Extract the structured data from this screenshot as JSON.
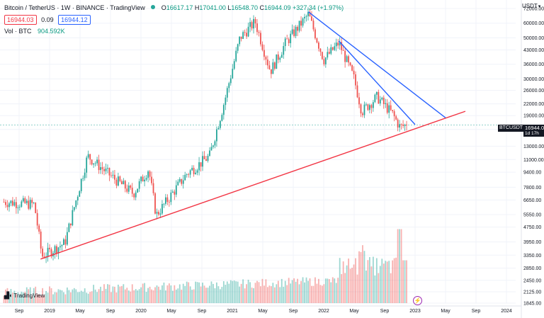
{
  "header": {
    "title": "Bitcoin / TetherUS · 1W · BINANCE · TradingView",
    "open_label": "O",
    "open": "16617.17",
    "high_label": "H",
    "high": "17041.00",
    "low_label": "L",
    "low": "16548.70",
    "close_label": "C",
    "close": "16944.09",
    "change": "+327.34 (+1.97%)",
    "sell_price": "16944.03",
    "spread": "0.09",
    "buy_price": "16944.12",
    "volume_label": "Vol · BTC",
    "volume_value": "904.592K"
  },
  "price_axis": {
    "currency": "USDT",
    "current_symbol": "BTCUSDT",
    "current_price": "16944.09",
    "countdown": "1d 17h"
  },
  "branding": {
    "logo_text": "TradingView",
    "logo_icon": "tradingview-logo-icon"
  },
  "colors": {
    "up": "#26a69a",
    "down": "#ef5350",
    "trend_support": "#f23645",
    "trend_resistance": "#2962ff"
  },
  "chart_data": {
    "type": "candlestick",
    "title": "Bitcoin / TetherUS · 1W · BINANCE",
    "scale": "log",
    "ylim": [
      1845,
      72000
    ],
    "y_ticks": [
      "72000.00",
      "60000.00",
      "50000.00",
      "43000.00",
      "36000.00",
      "30000.00",
      "26000.00",
      "22000.00",
      "19000.00",
      "16000.00",
      "13000.00",
      "11000.00",
      "9400.00",
      "7800.00",
      "6650.00",
      "5550.00",
      "4750.00",
      "3950.00",
      "3350.00",
      "2850.00",
      "2450.00",
      "2125.00",
      "1845.00"
    ],
    "x_ticks": [
      "Sep",
      "2019",
      "May",
      "Sep",
      "2020",
      "May",
      "Sep",
      "2021",
      "May",
      "Sep",
      "2022",
      "May",
      "Sep",
      "2023",
      "May",
      "Sep",
      "2024"
    ],
    "grid": true,
    "legend": "top-left",
    "price_anchors": [
      [
        "2018-07",
        6500
      ],
      [
        "2018-11",
        6300
      ],
      [
        "2018-12",
        3300
      ],
      [
        "2019-03",
        3900
      ],
      [
        "2019-06",
        11500
      ],
      [
        "2019-09",
        9000
      ],
      [
        "2019-12",
        7200
      ],
      [
        "2020-02",
        9800
      ],
      [
        "2020-03",
        5500
      ],
      [
        "2020-07",
        9200
      ],
      [
        "2020-10",
        11500
      ],
      [
        "2020-12",
        23000
      ],
      [
        "2021-02",
        50000
      ],
      [
        "2021-04",
        61000
      ],
      [
        "2021-06",
        33000
      ],
      [
        "2021-08",
        47000
      ],
      [
        "2021-11",
        67000
      ],
      [
        "2022-01",
        38000
      ],
      [
        "2022-03",
        47000
      ],
      [
        "2022-05",
        30000
      ],
      [
        "2022-06",
        20000
      ],
      [
        "2022-08",
        24000
      ],
      [
        "2022-10",
        19500
      ],
      [
        "2022-11",
        16500
      ],
      [
        "2022-12",
        16944
      ]
    ],
    "volume_peaks": [
      [
        "2022-06",
        "high"
      ],
      [
        "2022-11",
        "highest"
      ]
    ],
    "trendlines": [
      {
        "name": "support",
        "from": [
          "2018-12",
          3200
        ],
        "to": [
          "2023-09",
          21000
        ],
        "color": "#f23645"
      },
      {
        "name": "resistance-1",
        "from": [
          "2021-11",
          69000
        ],
        "to": [
          "2023-05",
          18500
        ],
        "color": "#2962ff"
      },
      {
        "name": "resistance-2",
        "from": [
          "2022-03",
          48000
        ],
        "to": [
          "2023-01",
          17000
        ],
        "color": "#2962ff"
      }
    ]
  }
}
